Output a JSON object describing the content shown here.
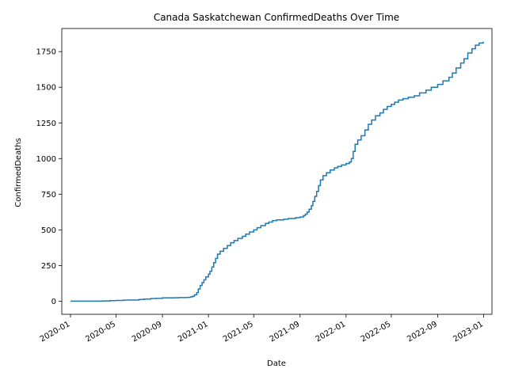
{
  "chart_data": {
    "type": "line",
    "title": "Canada Saskatchewan ConfirmedDeaths Over Time",
    "xlabel": "Date",
    "ylabel": "ConfirmedDeaths",
    "x_range": [
      "2019-12-09",
      "2023-01-23"
    ],
    "ylim": [
      -92,
      1912
    ],
    "grid": false,
    "legend": "none",
    "line_color": "#1f77b4",
    "x_ticks": [
      "2020-01",
      "2020-05",
      "2020-09",
      "2021-01",
      "2021-05",
      "2021-09",
      "2022-01",
      "2022-05",
      "2022-09",
      "2023-01"
    ],
    "y_ticks": [
      0,
      250,
      500,
      750,
      1000,
      1250,
      1500,
      1750
    ],
    "series": [
      {
        "x": [
          "2020-01-01",
          "2020-03-01",
          "2020-03-20",
          "2020-04-01",
          "2020-04-15",
          "2020-05-01",
          "2020-05-20",
          "2020-06-01",
          "2020-07-01",
          "2020-07-15",
          "2020-08-01",
          "2020-08-15",
          "2020-09-01",
          "2020-10-01",
          "2020-10-15",
          "2020-11-01",
          "2020-11-10",
          "2020-11-15",
          "2020-11-20",
          "2020-11-25",
          "2020-12-01",
          "2020-12-05",
          "2020-12-10",
          "2020-12-15",
          "2020-12-20",
          "2020-12-25",
          "2021-01-01",
          "2021-01-05",
          "2021-01-10",
          "2021-01-15",
          "2021-01-20",
          "2021-01-25",
          "2021-02-01",
          "2021-02-10",
          "2021-02-20",
          "2021-03-01",
          "2021-03-10",
          "2021-03-20",
          "2021-04-01",
          "2021-04-10",
          "2021-04-20",
          "2021-05-01",
          "2021-05-10",
          "2021-05-20",
          "2021-06-01",
          "2021-06-10",
          "2021-06-20",
          "2021-07-01",
          "2021-07-20",
          "2021-08-01",
          "2021-08-20",
          "2021-09-01",
          "2021-09-10",
          "2021-09-15",
          "2021-09-20",
          "2021-09-25",
          "2021-10-01",
          "2021-10-05",
          "2021-10-10",
          "2021-10-15",
          "2021-10-20",
          "2021-10-25",
          "2021-11-01",
          "2021-11-10",
          "2021-11-20",
          "2021-12-01",
          "2021-12-10",
          "2021-12-20",
          "2022-01-01",
          "2022-01-10",
          "2022-01-15",
          "2022-01-20",
          "2022-01-25",
          "2022-02-01",
          "2022-02-10",
          "2022-02-20",
          "2022-03-01",
          "2022-03-10",
          "2022-03-20",
          "2022-04-01",
          "2022-04-10",
          "2022-04-20",
          "2022-05-01",
          "2022-05-10",
          "2022-05-20",
          "2022-06-01",
          "2022-06-15",
          "2022-07-01",
          "2022-07-15",
          "2022-08-01",
          "2022-08-15",
          "2022-09-01",
          "2022-09-15",
          "2022-10-01",
          "2022-10-10",
          "2022-10-20",
          "2022-11-01",
          "2022-11-10",
          "2022-11-20",
          "2022-12-01",
          "2022-12-10",
          "2022-12-20",
          "2022-12-31"
        ],
        "y": [
          0,
          0,
          1,
          2,
          4,
          5,
          7,
          8,
          12,
          15,
          18,
          20,
          23,
          24,
          25,
          26,
          27,
          30,
          35,
          45,
          60,
          85,
          110,
          130,
          150,
          170,
          190,
          210,
          240,
          270,
          300,
          330,
          350,
          370,
          390,
          410,
          425,
          440,
          455,
          470,
          485,
          500,
          515,
          530,
          545,
          555,
          565,
          570,
          575,
          580,
          585,
          590,
          600,
          610,
          625,
          645,
          670,
          700,
          735,
          770,
          810,
          850,
          880,
          900,
          920,
          935,
          945,
          955,
          965,
          975,
          1000,
          1050,
          1100,
          1130,
          1160,
          1200,
          1240,
          1270,
          1300,
          1320,
          1345,
          1365,
          1380,
          1395,
          1410,
          1420,
          1430,
          1440,
          1460,
          1480,
          1500,
          1520,
          1545,
          1570,
          1600,
          1635,
          1670,
          1700,
          1740,
          1770,
          1795,
          1810,
          1820
        ]
      }
    ]
  }
}
